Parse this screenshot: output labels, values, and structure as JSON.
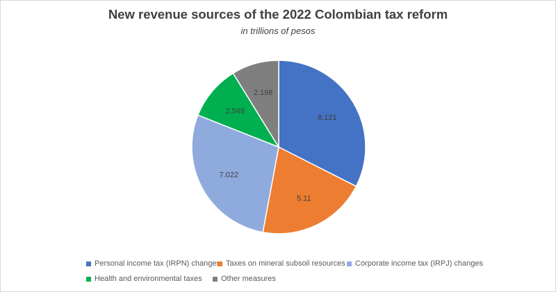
{
  "chart_data": {
    "type": "pie",
    "title": "New revenue sources of the 2022 Colombian tax reform",
    "subtitle": "in trillions of pesos",
    "categories": [
      "Personal income tax (IRPN) changes",
      "Taxes on mineral subsoil resources",
      "Corporate income tax (IRPJ) changes",
      "Health and environmental taxes",
      "Other measures"
    ],
    "values": [
      8.121,
      5.11,
      7.022,
      2.549,
      2.198
    ],
    "data_labels": [
      "8.121",
      "5.11",
      "7.022",
      "2.549",
      "2.198"
    ],
    "colors": [
      "#4472c4",
      "#ed7d31",
      "#8faadc",
      "#00b050",
      "#7f7f7f"
    ],
    "start_angle": "12 o'clock",
    "direction": "clockwise",
    "legend_position": "bottom"
  }
}
